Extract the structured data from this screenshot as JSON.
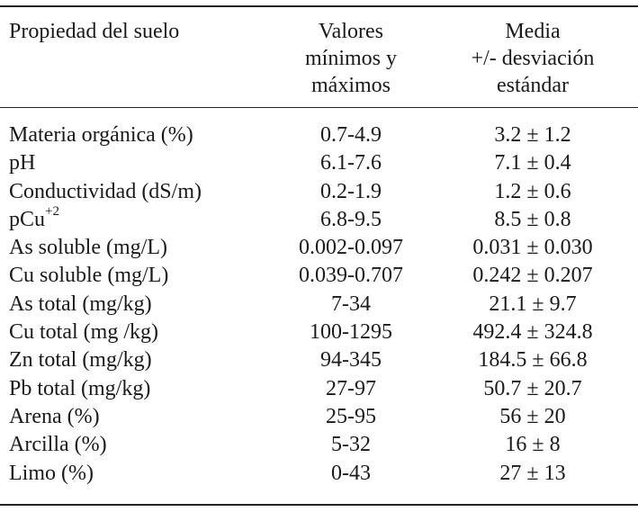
{
  "header": {
    "col_property": "Propiedad del suelo",
    "col_range": [
      "Valores",
      "mínimos y",
      "máximos"
    ],
    "col_mean": [
      "Media",
      "+/- desviación",
      "estándar"
    ]
  },
  "rows": [
    {
      "property": "Materia orgánica (%)",
      "range": "0.7-4.9",
      "mean": "3.2 ± 1.2"
    },
    {
      "property": "pH",
      "range": "6.1-7.6",
      "mean": "7.1 ± 0.4"
    },
    {
      "property": "Conductividad (dS/m)",
      "range": "0.2-1.9",
      "mean": "1.2 ± 0.6"
    },
    {
      "property": "pCu",
      "property_sup": "+2",
      "range": "6.8-9.5",
      "mean": "8.5 ± 0.8"
    },
    {
      "property": "As soluble (mg/L)",
      "range": "0.002-0.097",
      "mean": "0.031 ± 0.030"
    },
    {
      "property": "Cu soluble (mg/L)",
      "range": "0.039-0.707",
      "mean": "0.242 ± 0.207"
    },
    {
      "property": "As total (mg/kg)",
      "range": "7-34",
      "mean": "21.1 ± 9.7"
    },
    {
      "property": "Cu total (mg /kg)",
      "range": "100-1295",
      "mean": "492.4 ± 324.8"
    },
    {
      "property": "Zn total (mg/kg)",
      "range": "94-345",
      "mean": "184.5 ± 66.8"
    },
    {
      "property": "Pb total (mg/kg)",
      "range": "27-97",
      "mean": "50.7 ± 20.7"
    },
    {
      "property": "Arena (%)",
      "range": "25-95",
      "mean": "56 ± 20"
    },
    {
      "property": "Arcilla (%)",
      "range": "5-32",
      "mean": "16 ± 8"
    },
    {
      "property": "Limo (%)",
      "range": "0-43",
      "mean": "27 ± 13"
    }
  ]
}
